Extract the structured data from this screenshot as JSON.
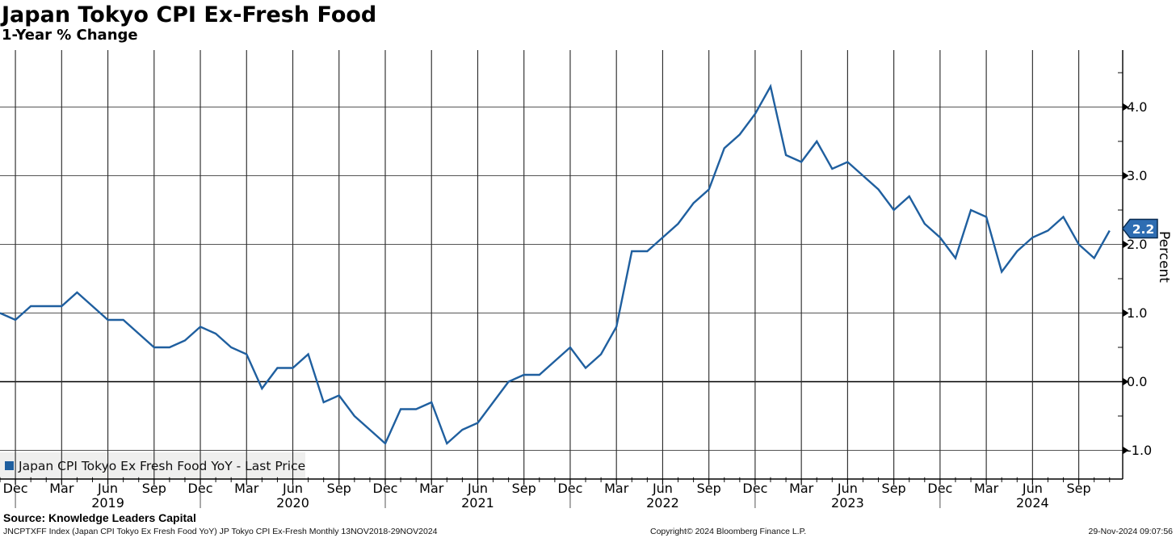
{
  "header": {
    "title": "Japan Tokyo CPI Ex-Fresh Food",
    "subtitle": "1-Year % Change"
  },
  "legend": {
    "label": "Japan CPI Tokyo Ex Fresh Food YoY - Last Price",
    "marker_color": "#1f5f9f"
  },
  "footer": {
    "source": "Source: Knowledge Leaders Capital",
    "ticker_line": "JNCPTXFF Index (Japan CPI Tokyo Ex Fresh Food YoY) JP Tokyo CPI Ex-Fresh  Monthly 13NOV2018-29NOV2024",
    "copyright": "Copyright© 2024 Bloomberg Finance L.P.",
    "timestamp": "29-Nov-2024 09:07:56"
  },
  "colors": {
    "line": "#1f5f9f",
    "badge_fill": "#2e6db2",
    "badge_border": "#0a2c50",
    "badge_text": "#ffffff",
    "grid_horizontal": "#555555",
    "grid_vertical": "#2e2e2e",
    "zero_line": "#000000",
    "axis": "#000000",
    "legend_background": "#efefee"
  },
  "chart_data": {
    "type": "line",
    "title": "Japan Tokyo CPI Ex-Fresh Food",
    "subtitle": "1-Year % Change",
    "frequency": "monthly",
    "x_start": "2018-11",
    "x_end": "2024-11",
    "ylabel": "Percent",
    "ylim": [
      -1.42,
      4.83
    ],
    "grid": true,
    "legend_position": "bottom-left",
    "last_price_label": "2.2",
    "last_price_value": 2.2,
    "series": [
      {
        "name": "Japan CPI Tokyo Ex Fresh Food YoY - Last Price",
        "color": "#1f5f9f",
        "values": [
          1.0,
          0.9,
          1.1,
          1.1,
          1.1,
          1.3,
          1.1,
          0.9,
          0.9,
          0.7,
          0.5,
          0.5,
          0.6,
          0.8,
          0.7,
          0.5,
          0.4,
          -0.1,
          0.2,
          0.2,
          0.4,
          -0.3,
          -0.2,
          -0.5,
          -0.7,
          -0.9,
          -0.4,
          -0.4,
          -0.3,
          -0.9,
          -0.7,
          -0.6,
          -0.3,
          0.0,
          0.1,
          0.1,
          0.3,
          0.5,
          0.2,
          0.4,
          0.8,
          1.9,
          1.9,
          2.1,
          2.3,
          2.6,
          2.8,
          3.4,
          3.6,
          3.9,
          4.3,
          3.3,
          3.2,
          3.5,
          3.1,
          3.2,
          3.0,
          2.8,
          2.5,
          2.7,
          2.3,
          2.1,
          1.8,
          2.5,
          2.4,
          1.6,
          1.9,
          2.1,
          2.2,
          2.4,
          2.0,
          1.8,
          2.2
        ]
      }
    ],
    "y_axis": {
      "ticks": [
        {
          "label": "4.0",
          "value": 4
        },
        {
          "label": "3.0",
          "value": 3
        },
        {
          "label": "2.0",
          "value": 2
        },
        {
          "label": "1.0",
          "value": 1
        },
        {
          "label": "0.0",
          "value": 0
        },
        {
          "label": "-1.0",
          "value": -1
        }
      ],
      "minor_tick_values": [
        4.5,
        3.5,
        2.5,
        1.5,
        0.5,
        -0.5
      ]
    },
    "x_axis": {
      "month_ticks": [
        {
          "label": "Dec",
          "index": 1
        },
        {
          "label": "Mar",
          "index": 4
        },
        {
          "label": "Jun",
          "index": 7
        },
        {
          "label": "Sep",
          "index": 10
        },
        {
          "label": "Dec",
          "index": 13
        },
        {
          "label": "Mar",
          "index": 16
        },
        {
          "label": "Jun",
          "index": 19
        },
        {
          "label": "Sep",
          "index": 22
        },
        {
          "label": "Dec",
          "index": 25
        },
        {
          "label": "Mar",
          "index": 28
        },
        {
          "label": "Jun",
          "index": 31
        },
        {
          "label": "Sep",
          "index": 34
        },
        {
          "label": "Dec",
          "index": 37
        },
        {
          "label": "Mar",
          "index": 40
        },
        {
          "label": "Jun",
          "index": 43
        },
        {
          "label": "Sep",
          "index": 46
        },
        {
          "label": "Dec",
          "index": 49
        },
        {
          "label": "Mar",
          "index": 52
        },
        {
          "label": "Jun",
          "index": 55
        },
        {
          "label": "Sep",
          "index": 58
        },
        {
          "label": "Dec",
          "index": 61
        },
        {
          "label": "Mar",
          "index": 64
        },
        {
          "label": "Jun",
          "index": 67
        },
        {
          "label": "Sep",
          "index": 70
        }
      ],
      "year_labels": [
        {
          "label": "2019",
          "index": 7
        },
        {
          "label": "2020",
          "index": 19
        },
        {
          "label": "2021",
          "index": 31
        },
        {
          "label": "2022",
          "index": 43
        },
        {
          "label": "2023",
          "index": 55
        },
        {
          "label": "2024",
          "index": 67
        }
      ],
      "year_separator_indices": [
        1,
        13,
        25,
        37,
        49,
        61
      ],
      "n_months": 73
    }
  }
}
